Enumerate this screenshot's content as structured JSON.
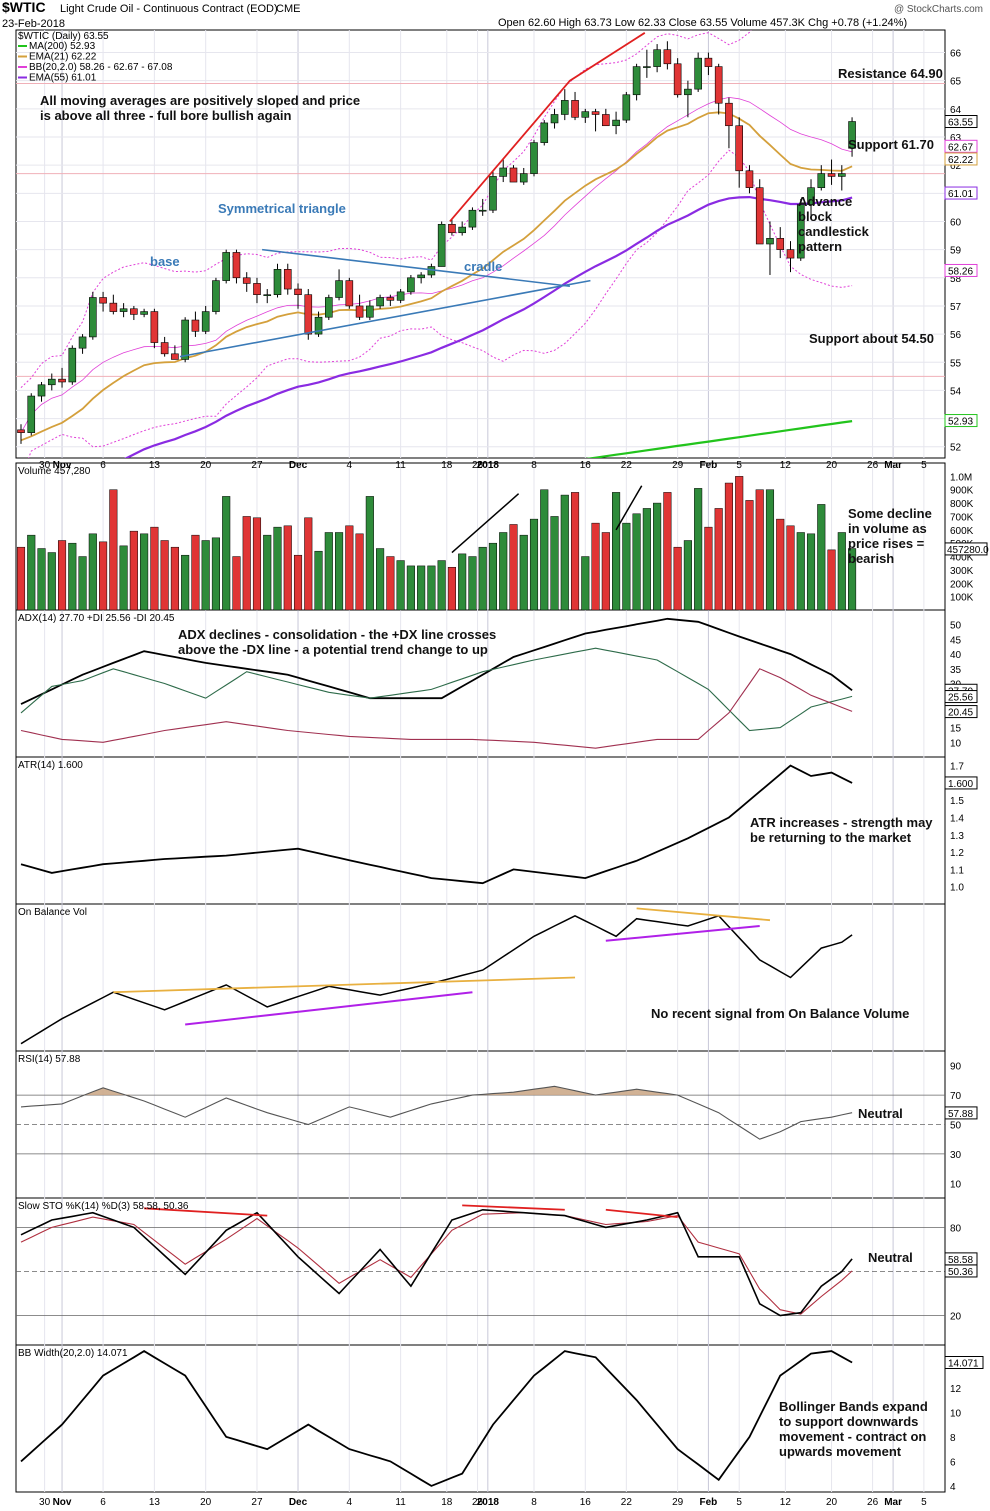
{
  "header": {
    "symbol": "$WTIC",
    "name": "Light Crude Oil - Continuous Contract (EOD)",
    "exchange": "CME",
    "date": "23-Feb-2018",
    "quote": "Open 62.60  High 63.73  Low 62.33  Close 63.55  Volume 457.3K  Chg +0.78 (+1.24%)",
    "watermark": "@ StockCharts.com"
  },
  "legend": {
    "line0": "$WTIC (Daily) 63.55",
    "items": [
      {
        "label": "MA(200) 52.93",
        "color": "#22c41c"
      },
      {
        "label": "EMA(21) 62.22",
        "color": "#d4a03c"
      },
      {
        "label": "BB(20,2.0) 58.26 - 62.67 - 67.08",
        "color": "#e040d8"
      },
      {
        "label": "EMA(55) 61.01",
        "color": "#8a2be2"
      }
    ]
  },
  "colors": {
    "up": "#2e8b3a",
    "down": "#e03535",
    "bb": "#e040d8",
    "ema21": "#d4a03c",
    "ema55": "#8a2be2",
    "ma200": "#22c41c",
    "trend": "#3a7ab7",
    "red": "#e02020",
    "orange": "#e8b040",
    "purple": "#b020e8"
  },
  "xaxis": {
    "labels": [
      "30",
      "Nov",
      "6",
      "13",
      "20",
      "27",
      "Dec",
      "4",
      "11",
      "18",
      "26",
      "2018",
      "8",
      "16",
      "22",
      "29",
      "Feb",
      "5",
      "12",
      "20",
      "26",
      "Mar",
      "5"
    ]
  },
  "price_panel": {
    "title": "$WTIC (Daily) 63.55",
    "yticks": [
      "66",
      "65",
      "64",
      "63",
      "62",
      "61",
      "60",
      "59",
      "58",
      "57",
      "56",
      "55",
      "54",
      "53",
      "52"
    ],
    "right_tags": [
      {
        "text": "63.55",
        "value": 63.55,
        "style": "box"
      },
      {
        "text": "62.67",
        "value": 62.67,
        "style": "bb"
      },
      {
        "text": "62.22",
        "value": 62.22,
        "style": "ema21"
      },
      {
        "text": "61.01",
        "value": 61.01,
        "style": "ema55"
      },
      {
        "text": "58.26",
        "value": 58.26,
        "style": "bb"
      },
      {
        "text": "52.93",
        "value": 52.93,
        "style": "ma200"
      }
    ],
    "annotations": {
      "resistance": "Resistance 64.90",
      "support1": "Support 61.70",
      "support2": "Support about 54.50",
      "ma_note_1": "All moving averages are positively sloped and price",
      "ma_note_2": "is above all three - full bore bullish again",
      "triangle": "Symmetrical triangle",
      "base": "base",
      "cradle": "cradle",
      "advance_1": "Advance",
      "advance_2": "block",
      "advance_3": "candlestick",
      "advance_4": "pattern"
    }
  },
  "volume_panel": {
    "title": "Volume 457,280",
    "yticks": [
      "1.0M",
      "900K",
      "800K",
      "700K",
      "600K",
      "500K",
      "400K",
      "300K",
      "200K",
      "100K"
    ],
    "tag": "457280.0",
    "note_1": "Some decline",
    "note_2": "in volume as",
    "note_3": "price rises =",
    "note_4": "bearish"
  },
  "adx_panel": {
    "title": "ADX(14) 27.70 +DI 25.56 -DI 20.45",
    "yticks": [
      "50",
      "45",
      "40",
      "35",
      "30",
      "25",
      "20",
      "15",
      "10"
    ],
    "tags": [
      "27.70",
      "25.56",
      "20.45"
    ],
    "note_1": "ADX declines - consolidation - the +DX line crosses",
    "note_2": "above the -DX line - a potential trend change to up"
  },
  "atr_panel": {
    "title": "ATR(14) 1.600",
    "yticks": [
      "1.7",
      "1.6",
      "1.5",
      "1.4",
      "1.3",
      "1.2",
      "1.1",
      "1.0"
    ],
    "tag": "1.600",
    "note_1": "ATR increases - strength may",
    "note_2": "be returning to the market"
  },
  "obv_panel": {
    "title": "On Balance Vol",
    "note": "No recent signal from On Balance Volume"
  },
  "rsi_panel": {
    "title": "RSI(14) 57.88",
    "yticks": [
      "90",
      "70",
      "50",
      "30",
      "10"
    ],
    "tag": "57.88",
    "note": "Neutral"
  },
  "sto_panel": {
    "title": "Slow STO %K(14) %D(3) 58.58, 50.36",
    "yticks": [
      "80",
      "50",
      "20"
    ],
    "tags": [
      "58.58",
      "50.36"
    ],
    "note": "Neutral"
  },
  "bbw_panel": {
    "title": "BB Width(20,2.0) 14.071",
    "yticks": [
      "14",
      "12",
      "10",
      "8",
      "6",
      "4"
    ],
    "tag": "14.071",
    "note_1": "Bollinger Bands expand",
    "note_2": "to support downwards",
    "note_3": "movement - contract on",
    "note_4": "upwards movement"
  },
  "chart_data": {
    "type": "candlestick-with-indicators",
    "title": "$WTIC Light Crude Oil - Continuous Contract (EOD) Daily",
    "dates": [
      "Oct26",
      "Oct27",
      "Oct30",
      "Oct31",
      "Nov1",
      "Nov2",
      "Nov3",
      "Nov6",
      "Nov7",
      "Nov8",
      "Nov9",
      "Nov10",
      "Nov13",
      "Nov14",
      "Nov15",
      "Nov16",
      "Nov17",
      "Nov20",
      "Nov21",
      "Nov22",
      "Nov24",
      "Nov27",
      "Nov28",
      "Nov29",
      "Nov30",
      "Dec1",
      "Dec4",
      "Dec5",
      "Dec6",
      "Dec7",
      "Dec8",
      "Dec11",
      "Dec12",
      "Dec13",
      "Dec14",
      "Dec15",
      "Dec18",
      "Dec19",
      "Dec20",
      "Dec21",
      "Dec22",
      "Dec26",
      "Dec27",
      "Dec28",
      "Dec29",
      "Jan2",
      "Jan3",
      "Jan4",
      "Jan5",
      "Jan8",
      "Jan9",
      "Jan10",
      "Jan11",
      "Jan12",
      "Jan16",
      "Jan17",
      "Jan18",
      "Jan19",
      "Jan22",
      "Jan23",
      "Jan24",
      "Jan25",
      "Jan26",
      "Jan29",
      "Jan30",
      "Jan31",
      "Feb1",
      "Feb2",
      "Feb5",
      "Feb6",
      "Feb7",
      "Feb8",
      "Feb9",
      "Feb12",
      "Feb13",
      "Feb14",
      "Feb15",
      "Feb16",
      "Feb20",
      "Feb21",
      "Feb22",
      "Feb23"
    ],
    "ohlc": [
      [
        52.6,
        52.8,
        52.1,
        52.5
      ],
      [
        52.5,
        53.9,
        52.4,
        53.8
      ],
      [
        53.8,
        54.3,
        53.6,
        54.2
      ],
      [
        54.2,
        54.6,
        54.0,
        54.4
      ],
      [
        54.4,
        54.8,
        54.1,
        54.3
      ],
      [
        54.3,
        55.6,
        54.2,
        55.5
      ],
      [
        55.5,
        56.0,
        55.3,
        55.9
      ],
      [
        55.9,
        57.5,
        55.8,
        57.3
      ],
      [
        57.3,
        57.5,
        56.8,
        57.1
      ],
      [
        57.1,
        57.4,
        56.7,
        56.8
      ],
      [
        56.8,
        57.1,
        56.6,
        56.9
      ],
      [
        56.9,
        57.0,
        56.5,
        56.7
      ],
      [
        56.7,
        56.9,
        56.6,
        56.8
      ],
      [
        56.8,
        56.9,
        55.5,
        55.7
      ],
      [
        55.7,
        55.9,
        55.2,
        55.3
      ],
      [
        55.3,
        55.6,
        55.1,
        55.1
      ],
      [
        55.1,
        56.6,
        55.0,
        56.5
      ],
      [
        56.5,
        56.8,
        55.9,
        56.1
      ],
      [
        56.1,
        57.0,
        56.0,
        56.8
      ],
      [
        56.8,
        58.0,
        56.7,
        57.9
      ],
      [
        57.9,
        59.0,
        57.8,
        58.9
      ],
      [
        58.9,
        59.0,
        57.8,
        58.0
      ],
      [
        58.0,
        58.2,
        57.5,
        57.8
      ],
      [
        57.8,
        58.0,
        57.1,
        57.4
      ],
      [
        57.4,
        57.6,
        57.1,
        57.4
      ],
      [
        57.4,
        58.5,
        57.3,
        58.3
      ],
      [
        58.3,
        58.5,
        57.4,
        57.6
      ],
      [
        57.6,
        57.8,
        56.9,
        57.4
      ],
      [
        57.4,
        57.6,
        55.8,
        56.0
      ],
      [
        56.0,
        56.8,
        55.9,
        56.6
      ],
      [
        56.6,
        57.4,
        56.5,
        57.3
      ],
      [
        57.3,
        58.3,
        57.2,
        57.9
      ],
      [
        57.9,
        58.0,
        56.9,
        57.0
      ],
      [
        57.0,
        57.4,
        56.5,
        56.6
      ],
      [
        56.6,
        57.2,
        56.5,
        57.0
      ],
      [
        57.0,
        57.4,
        56.9,
        57.3
      ],
      [
        57.3,
        57.4,
        57.0,
        57.2
      ],
      [
        57.2,
        57.6,
        57.1,
        57.5
      ],
      [
        57.5,
        58.1,
        57.4,
        58.0
      ],
      [
        58.0,
        58.2,
        57.8,
        58.1
      ],
      [
        58.1,
        58.5,
        58.0,
        58.4
      ],
      [
        58.4,
        60.0,
        58.4,
        59.9
      ],
      [
        59.9,
        60.1,
        59.5,
        59.6
      ],
      [
        59.6,
        60.0,
        59.5,
        59.8
      ],
      [
        59.8,
        60.5,
        59.7,
        60.4
      ],
      [
        60.4,
        60.8,
        60.2,
        60.4
      ],
      [
        60.4,
        61.8,
        60.3,
        61.6
      ],
      [
        61.6,
        62.2,
        61.4,
        61.9
      ],
      [
        61.9,
        62.0,
        61.5,
        61.4
      ],
      [
        61.4,
        61.9,
        61.3,
        61.7
      ],
      [
        61.7,
        62.9,
        61.6,
        62.8
      ],
      [
        62.8,
        63.6,
        62.7,
        63.5
      ],
      [
        63.5,
        64.0,
        63.3,
        63.8
      ],
      [
        63.8,
        64.7,
        63.6,
        64.3
      ],
      [
        64.3,
        64.6,
        63.6,
        63.7
      ],
      [
        63.7,
        64.0,
        63.5,
        63.9
      ],
      [
        63.9,
        64.0,
        63.2,
        63.8
      ],
      [
        63.8,
        64.0,
        63.4,
        63.4
      ],
      [
        63.4,
        63.9,
        63.1,
        63.6
      ],
      [
        63.6,
        64.6,
        63.5,
        64.5
      ],
      [
        64.5,
        65.6,
        64.3,
        65.5
      ],
      [
        65.5,
        66.1,
        65.1,
        65.5
      ],
      [
        65.5,
        66.3,
        65.3,
        66.1
      ],
      [
        66.1,
        66.4,
        65.4,
        65.6
      ],
      [
        65.6,
        65.8,
        64.4,
        64.5
      ],
      [
        64.5,
        65.0,
        63.7,
        64.7
      ],
      [
        64.7,
        66.0,
        64.6,
        65.8
      ],
      [
        65.8,
        66.0,
        65.2,
        65.5
      ],
      [
        65.5,
        65.6,
        63.8,
        64.2
      ],
      [
        64.2,
        64.4,
        62.6,
        63.4
      ],
      [
        63.4,
        63.7,
        61.2,
        61.8
      ],
      [
        61.8,
        62.0,
        61.0,
        61.2
      ],
      [
        61.2,
        61.5,
        59.2,
        59.2
      ],
      [
        59.2,
        60.0,
        58.1,
        59.4
      ],
      [
        59.4,
        59.8,
        58.7,
        59.0
      ],
      [
        59.0,
        59.3,
        58.2,
        58.7
      ],
      [
        58.7,
        60.8,
        58.6,
        60.6
      ],
      [
        60.6,
        61.5,
        60.2,
        61.2
      ],
      [
        61.2,
        62.0,
        61.1,
        61.7
      ],
      [
        61.7,
        62.2,
        61.3,
        61.6
      ],
      [
        61.6,
        62.0,
        61.1,
        61.7
      ],
      [
        62.6,
        63.7,
        62.3,
        63.55
      ]
    ],
    "volume_k": [
      470,
      560,
      460,
      430,
      520,
      500,
      400,
      570,
      510,
      900,
      480,
      590,
      570,
      620,
      520,
      470,
      410,
      560,
      520,
      540,
      850,
      400,
      700,
      690,
      560,
      620,
      630,
      410,
      690,
      440,
      580,
      580,
      630,
      570,
      850,
      460,
      400,
      370,
      330,
      330,
      330,
      370,
      320,
      420,
      400,
      470,
      500,
      580,
      640,
      560,
      680,
      900,
      700,
      860,
      880,
      400,
      650,
      580,
      880,
      650,
      720,
      760,
      800,
      880,
      470,
      520,
      910,
      620,
      760,
      950,
      1000,
      820,
      900,
      900,
      680,
      630,
      580,
      570,
      790,
      450,
      580,
      460
    ],
    "series_names": [
      "MA(200)",
      "EMA(21)",
      "BB(20,2.0)",
      "EMA(55)",
      "Volume",
      "ADX(14)",
      "+DI",
      "-DI",
      "ATR(14)",
      "On Balance Vol",
      "RSI(14)",
      "%K(14)",
      "%D(3)",
      "BB Width(20,2.0)"
    ],
    "price_ylim": [
      51.6,
      66.8
    ]
  }
}
